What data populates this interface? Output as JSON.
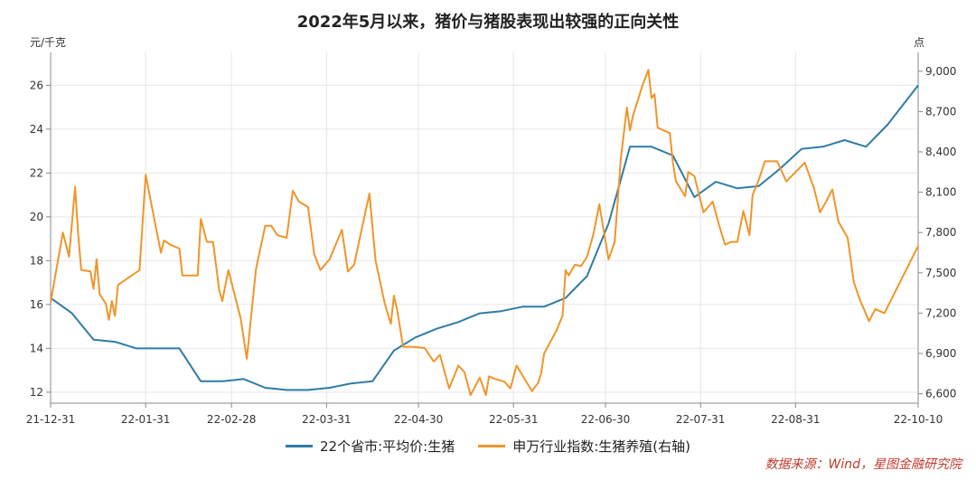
{
  "title": "2022年5月以来，猪价与猪股表现出较强的正向关性",
  "source": "数据来源：Wind，星图金融研究院",
  "colors": {
    "left_series": "#2e7ca8",
    "right_series": "#f0952a",
    "grid": "#e6e6e6"
  },
  "chart_data": {
    "type": "line",
    "y_left": {
      "unit": "元/千克",
      "ticks": [
        12,
        14,
        16,
        18,
        20,
        22,
        24,
        26
      ],
      "ylim": [
        11.5,
        27.5
      ]
    },
    "y_right": {
      "unit": "点",
      "ticks": [
        6600,
        6900,
        7200,
        7500,
        7800,
        8100,
        8400,
        8700,
        9000
      ],
      "ylim": [
        6530,
        9140
      ]
    },
    "x_axis": {
      "ticks": [
        "21-12-31",
        "22-01-31",
        "22-02-28",
        "22-03-31",
        "22-04-30",
        "22-05-31",
        "22-06-30",
        "22-07-31",
        "22-08-31",
        "22-10-10"
      ]
    },
    "grid": true,
    "legend_position": "bottom",
    "series": [
      {
        "name": "22个省市:平均价:生猪",
        "axis": "left",
        "points": [
          [
            "2021-12-31",
            16.3
          ],
          [
            "2022-01-07",
            15.6
          ],
          [
            "2022-01-14",
            14.4
          ],
          [
            "2022-01-21",
            14.3
          ],
          [
            "2022-01-28",
            14.0
          ],
          [
            "2022-02-04",
            14.0
          ],
          [
            "2022-02-11",
            14.0
          ],
          [
            "2022-02-18",
            12.5
          ],
          [
            "2022-02-25",
            12.5
          ],
          [
            "2022-03-04",
            12.6
          ],
          [
            "2022-03-11",
            12.2
          ],
          [
            "2022-03-18",
            12.1
          ],
          [
            "2022-03-25",
            12.1
          ],
          [
            "2022-04-01",
            12.2
          ],
          [
            "2022-04-08",
            12.4
          ],
          [
            "2022-04-15",
            12.5
          ],
          [
            "2022-04-22",
            13.9
          ],
          [
            "2022-04-29",
            14.5
          ],
          [
            "2022-05-06",
            14.9
          ],
          [
            "2022-05-13",
            15.2
          ],
          [
            "2022-05-20",
            15.6
          ],
          [
            "2022-05-27",
            15.7
          ],
          [
            "2022-06-03",
            15.9
          ],
          [
            "2022-06-10",
            15.9
          ],
          [
            "2022-06-17",
            16.3
          ],
          [
            "2022-06-24",
            17.3
          ],
          [
            "2022-07-01",
            19.7
          ],
          [
            "2022-07-08",
            23.2
          ],
          [
            "2022-07-15",
            23.2
          ],
          [
            "2022-07-22",
            22.8
          ],
          [
            "2022-07-29",
            20.9
          ],
          [
            "2022-08-05",
            21.6
          ],
          [
            "2022-08-12",
            21.3
          ],
          [
            "2022-08-19",
            21.4
          ],
          [
            "2022-08-26",
            22.2
          ],
          [
            "2022-09-02",
            23.1
          ],
          [
            "2022-09-09",
            23.2
          ],
          [
            "2022-09-16",
            23.5
          ],
          [
            "2022-09-23",
            23.2
          ],
          [
            "2022-09-30",
            24.2
          ],
          [
            "2022-10-10",
            26.0
          ]
        ]
      },
      {
        "name": "申万行业指数:生猪养殖(右轴)",
        "axis": "right",
        "points": [
          [
            "2021-12-31",
            7280
          ],
          [
            "2022-01-04",
            7800
          ],
          [
            "2022-01-06",
            7620
          ],
          [
            "2022-01-08",
            8140
          ],
          [
            "2022-01-09",
            7790
          ],
          [
            "2022-01-10",
            7520
          ],
          [
            "2022-01-13",
            7510
          ],
          [
            "2022-01-14",
            7380
          ],
          [
            "2022-01-15",
            7600
          ],
          [
            "2022-01-16",
            7340
          ],
          [
            "2022-01-18",
            7270
          ],
          [
            "2022-01-19",
            7150
          ],
          [
            "2022-01-20",
            7290
          ],
          [
            "2022-01-21",
            7180
          ],
          [
            "2022-01-22",
            7410
          ],
          [
            "2022-01-29",
            7520
          ],
          [
            "2022-01-31",
            8230
          ],
          [
            "2022-02-03",
            7880
          ],
          [
            "2022-02-05",
            7650
          ],
          [
            "2022-02-06",
            7740
          ],
          [
            "2022-02-08",
            7710
          ],
          [
            "2022-02-11",
            7680
          ],
          [
            "2022-02-12",
            7480
          ],
          [
            "2022-02-17",
            7480
          ],
          [
            "2022-02-18",
            7900
          ],
          [
            "2022-02-20",
            7730
          ],
          [
            "2022-02-22",
            7730
          ],
          [
            "2022-02-24",
            7370
          ],
          [
            "2022-02-25",
            7290
          ],
          [
            "2022-02-27",
            7520
          ],
          [
            "2022-03-03",
            7160
          ],
          [
            "2022-03-05",
            6860
          ],
          [
            "2022-03-08",
            7530
          ],
          [
            "2022-03-11",
            7850
          ],
          [
            "2022-03-13",
            7850
          ],
          [
            "2022-03-15",
            7780
          ],
          [
            "2022-03-18",
            7760
          ],
          [
            "2022-03-20",
            8110
          ],
          [
            "2022-03-22",
            8030
          ],
          [
            "2022-03-25",
            7990
          ],
          [
            "2022-03-27",
            7640
          ],
          [
            "2022-03-29",
            7520
          ],
          [
            "2022-04-01",
            7600
          ],
          [
            "2022-04-05",
            7820
          ],
          [
            "2022-04-07",
            7510
          ],
          [
            "2022-04-09",
            7560
          ],
          [
            "2022-04-14",
            8090
          ],
          [
            "2022-04-16",
            7590
          ],
          [
            "2022-04-19",
            7270
          ],
          [
            "2022-04-21",
            7120
          ],
          [
            "2022-04-22",
            7330
          ],
          [
            "2022-04-23",
            7230
          ],
          [
            "2022-04-25",
            6950
          ],
          [
            "2022-04-28",
            6950
          ],
          [
            "2022-05-02",
            6940
          ],
          [
            "2022-05-05",
            6840
          ],
          [
            "2022-05-07",
            6890
          ],
          [
            "2022-05-10",
            6640
          ],
          [
            "2022-05-13",
            6810
          ],
          [
            "2022-05-15",
            6760
          ],
          [
            "2022-05-17",
            6590
          ],
          [
            "2022-05-20",
            6720
          ],
          [
            "2022-05-22",
            6590
          ],
          [
            "2022-05-23",
            6730
          ],
          [
            "2022-05-25",
            6710
          ],
          [
            "2022-05-28",
            6690
          ],
          [
            "2022-05-30",
            6640
          ],
          [
            "2022-06-01",
            6810
          ],
          [
            "2022-06-06",
            6620
          ],
          [
            "2022-06-08",
            6680
          ],
          [
            "2022-06-09",
            6750
          ],
          [
            "2022-06-10",
            6900
          ],
          [
            "2022-06-14",
            7070
          ],
          [
            "2022-06-16",
            7180
          ],
          [
            "2022-06-17",
            7520
          ],
          [
            "2022-06-18",
            7480
          ],
          [
            "2022-06-20",
            7560
          ],
          [
            "2022-06-22",
            7550
          ],
          [
            "2022-06-24",
            7620
          ],
          [
            "2022-06-26",
            7780
          ],
          [
            "2022-06-28",
            8010
          ],
          [
            "2022-07-01",
            7600
          ],
          [
            "2022-07-03",
            7730
          ],
          [
            "2022-07-05",
            8350
          ],
          [
            "2022-07-07",
            8730
          ],
          [
            "2022-07-08",
            8560
          ],
          [
            "2022-07-09",
            8670
          ],
          [
            "2022-07-12",
            8890
          ],
          [
            "2022-07-14",
            9010
          ],
          [
            "2022-07-15",
            8800
          ],
          [
            "2022-07-16",
            8830
          ],
          [
            "2022-07-17",
            8580
          ],
          [
            "2022-07-21",
            8540
          ],
          [
            "2022-07-22",
            8320
          ],
          [
            "2022-07-23",
            8180
          ],
          [
            "2022-07-26",
            8070
          ],
          [
            "2022-07-27",
            8250
          ],
          [
            "2022-07-29",
            8220
          ],
          [
            "2022-08-01",
            7950
          ],
          [
            "2022-08-04",
            8030
          ],
          [
            "2022-08-06",
            7860
          ],
          [
            "2022-08-08",
            7710
          ],
          [
            "2022-08-10",
            7730
          ],
          [
            "2022-08-12",
            7730
          ],
          [
            "2022-08-14",
            7960
          ],
          [
            "2022-08-16",
            7780
          ],
          [
            "2022-08-17",
            8080
          ],
          [
            "2022-08-19",
            8190
          ],
          [
            "2022-08-21",
            8330
          ],
          [
            "2022-08-25",
            8330
          ],
          [
            "2022-08-28",
            8180
          ],
          [
            "2022-08-31",
            8250
          ],
          [
            "2022-09-03",
            8320
          ],
          [
            "2022-09-06",
            8130
          ],
          [
            "2022-09-08",
            7950
          ],
          [
            "2022-09-10",
            8030
          ],
          [
            "2022-09-12",
            8120
          ],
          [
            "2022-09-14",
            7880
          ],
          [
            "2022-09-17",
            7760
          ],
          [
            "2022-09-19",
            7430
          ],
          [
            "2022-09-21",
            7300
          ],
          [
            "2022-09-24",
            7140
          ],
          [
            "2022-09-26",
            7230
          ],
          [
            "2022-09-29",
            7200
          ],
          [
            "2022-10-10",
            7700
          ]
        ]
      }
    ]
  }
}
